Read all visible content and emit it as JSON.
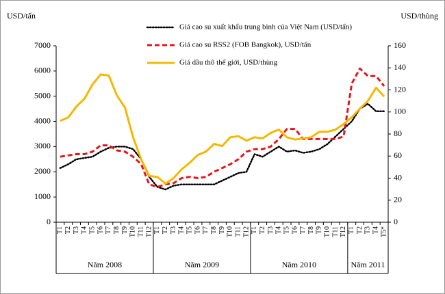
{
  "chart_data": {
    "type": "line",
    "y_label": "USD/tấn",
    "y2_label": "USD/thùng",
    "groups": [
      {
        "name": "Năm 2008",
        "categories": [
          "T1",
          "T2",
          "T3",
          "T4",
          "T5",
          "T6",
          "T7",
          "T8",
          "T9",
          "T10",
          "T11",
          "T12"
        ]
      },
      {
        "name": "Năm 2009",
        "categories": [
          "T1",
          "T2",
          "T3",
          "T4",
          "T5",
          "T6",
          "T7",
          "T8",
          "T9",
          "T10",
          "T11",
          "T12"
        ]
      },
      {
        "name": "Năm 2010",
        "categories": [
          "T1",
          "T2",
          "T3",
          "T4",
          "T5",
          "T6",
          "T7",
          "T8",
          "T9",
          "T10",
          "T11",
          "T12"
        ]
      },
      {
        "name": "Năm 2011",
        "categories": [
          "T1",
          "T2",
          "T3",
          "T4",
          "T5*"
        ]
      }
    ],
    "ylim": [
      0,
      7000
    ],
    "yticks": [
      0,
      1000,
      2000,
      3000,
      4000,
      5000,
      6000,
      7000
    ],
    "y2lim": [
      0,
      160
    ],
    "y2ticks": [
      0,
      20,
      40,
      60,
      80,
      100,
      120,
      140,
      160
    ],
    "series": [
      {
        "name": "Giá cao su xuất khẩu trung bình của Việt Nam (USD/tấn)",
        "color": "#000000",
        "dash": "dotted",
        "values": [
          2150,
          2300,
          2500,
          2550,
          2600,
          2800,
          2950,
          3000,
          3000,
          2900,
          2500,
          1800,
          1400,
          1300,
          1450,
          1500,
          1500,
          1500,
          1500,
          1500,
          1650,
          1800,
          1950,
          2000,
          2700,
          2600,
          2800,
          3000,
          2800,
          2850,
          2750,
          2800,
          2900,
          3100,
          3400,
          3700,
          4000,
          4500,
          4700,
          4400,
          4400
        ]
      },
      {
        "name": "Giá cao su RSS2 (FOB Bangkok), USD/tấn",
        "color": "#e8141b",
        "dash": "dashed",
        "values": [
          2600,
          2650,
          2700,
          2700,
          2800,
          3050,
          3050,
          2850,
          2800,
          2600,
          2300,
          1500,
          1400,
          1500,
          1550,
          1750,
          1800,
          1750,
          1800,
          2000,
          2150,
          2300,
          2500,
          2800,
          2900,
          2900,
          3000,
          3300,
          3700,
          3700,
          3300,
          3300,
          3300,
          3300,
          3300,
          3400,
          5500,
          6100,
          5800,
          5800,
          5400
        ]
      },
      {
        "name": "Giá dầu thô thế giới, USD/thùng",
        "color": "#f5b800",
        "dash": "solid",
        "axis": "y2",
        "values": [
          92,
          95,
          105,
          112,
          125,
          134,
          133,
          115,
          104,
          77,
          57,
          42,
          41,
          35,
          40,
          48,
          54,
          61,
          64,
          71,
          69,
          77,
          78,
          74,
          77,
          76,
          81,
          84,
          77,
          75,
          76,
          77,
          82,
          82,
          84,
          89,
          95,
          103,
          110,
          122,
          114
        ]
      }
    ]
  }
}
